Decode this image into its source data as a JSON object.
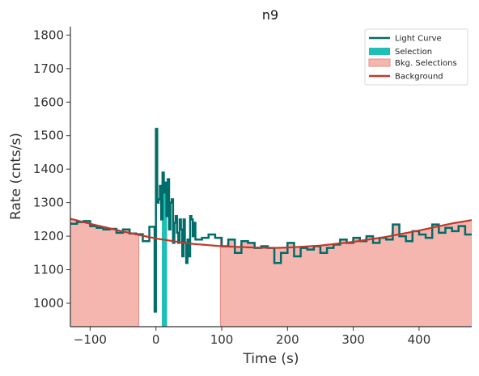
{
  "chart_data": {
    "type": "line",
    "title": "n9",
    "xlabel": "Time (s)",
    "ylabel": "Rate (cnts/s)",
    "xlim": [
      -130,
      480
    ],
    "ylim": [
      930,
      1825
    ],
    "xticks": [
      -100,
      0,
      100,
      200,
      300,
      400
    ],
    "yticks": [
      1000,
      1100,
      1200,
      1300,
      1400,
      1500,
      1600,
      1700,
      1800
    ],
    "grid": false,
    "legend_position": "top-right",
    "legend": [
      "Light Curve",
      "Selection",
      "Bkg. Selections",
      "Background"
    ],
    "colors": {
      "light_curve": "#006d6a",
      "selection": "#1fbfb5",
      "bkg_fill": "#f4b6ae",
      "bkg_edge": "#ea8d84",
      "background": "#c0392b",
      "axis": "#333333"
    },
    "selection": {
      "x_start": 9,
      "x_end": 17
    },
    "bkg_selections": [
      {
        "x_start": -130,
        "x_end": -26
      },
      {
        "x_start": 98,
        "x_end": 480
      }
    ],
    "background_model": {
      "x": [
        -130,
        -100,
        -50,
        0,
        50,
        100,
        150,
        180,
        200,
        250,
        300,
        350,
        400,
        450,
        480
      ],
      "y": [
        1252,
        1237,
        1214,
        1193,
        1178,
        1170,
        1166,
        1165,
        1166,
        1172,
        1183,
        1198,
        1217,
        1238,
        1248
      ]
    },
    "light_curve": {
      "edges": [
        -130,
        -120,
        -110,
        -100,
        -90,
        -80,
        -70,
        -60,
        -50,
        -40,
        -30,
        -20,
        -10,
        -2,
        0,
        2,
        4,
        6,
        8,
        10,
        12,
        14,
        16,
        18,
        20,
        22,
        24,
        26,
        28,
        30,
        32,
        34,
        36,
        38,
        40,
        42,
        44,
        46,
        48,
        50,
        52,
        54,
        56,
        58,
        60,
        70,
        80,
        90,
        100,
        110,
        120,
        130,
        140,
        150,
        160,
        170,
        180,
        190,
        200,
        210,
        220,
        230,
        240,
        250,
        260,
        270,
        280,
        290,
        300,
        310,
        320,
        330,
        340,
        350,
        360,
        370,
        380,
        390,
        400,
        410,
        420,
        430,
        440,
        450,
        460,
        470,
        480
      ],
      "rates": [
        1237,
        1242,
        1245,
        1230,
        1225,
        1220,
        1222,
        1210,
        1220,
        1208,
        1206,
        1185,
        1228,
        975,
        1520,
        1300,
        1310,
        1350,
        1250,
        1390,
        1330,
        1360,
        1260,
        1370,
        1220,
        1300,
        1310,
        1180,
        1240,
        1260,
        1210,
        1180,
        1250,
        1220,
        1140,
        1250,
        1180,
        1120,
        1190,
        1140,
        1260,
        1250,
        1200,
        1240,
        1190,
        1195,
        1205,
        1195,
        1170,
        1190,
        1150,
        1185,
        1180,
        1165,
        1170,
        1165,
        1120,
        1150,
        1180,
        1140,
        1165,
        1160,
        1170,
        1150,
        1165,
        1175,
        1190,
        1180,
        1195,
        1185,
        1200,
        1180,
        1195,
        1190,
        1235,
        1200,
        1185,
        1215,
        1205,
        1195,
        1235,
        1210,
        1225,
        1215,
        1230,
        1205
      ]
    }
  }
}
